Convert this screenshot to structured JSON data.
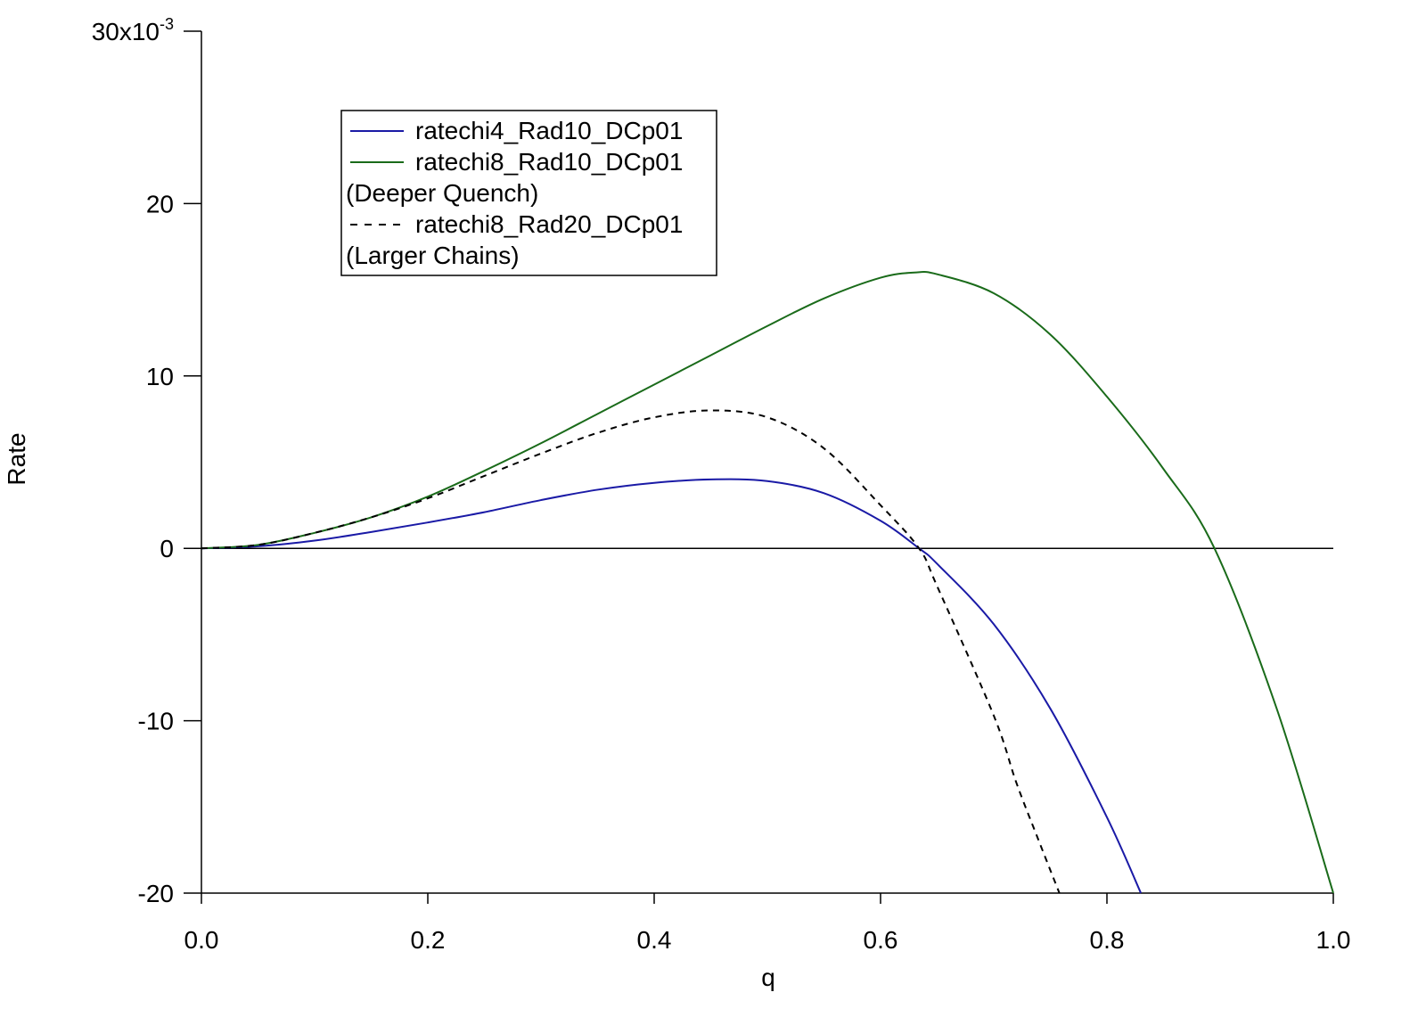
{
  "chart_data": {
    "type": "line",
    "title": "",
    "xlabel": "q",
    "ylabel": "Rate",
    "xlim": [
      0.0,
      1.0
    ],
    "ylim": [
      -0.02,
      0.03
    ],
    "x_ticks": [
      "0.0",
      "0.2",
      "0.4",
      "0.6",
      "0.8",
      "1.0"
    ],
    "x_tick_values": [
      0.0,
      0.2,
      0.4,
      0.6,
      0.8,
      1.0
    ],
    "y_ticks": [
      "-20",
      "-10",
      "0",
      "10",
      "20",
      "30x10"
    ],
    "y_tick_values": [
      -0.02,
      -0.01,
      0.0,
      0.01,
      0.02,
      0.03
    ],
    "y_exponent": "-3",
    "zero_line": true,
    "grid": false,
    "legend_position": "top-left",
    "series": [
      {
        "name": "ratechi4_Rad10_DCp01",
        "color": "#1a1aa6",
        "dash": "solid",
        "x": [
          0.0,
          0.05,
          0.1,
          0.15,
          0.2,
          0.25,
          0.3,
          0.35,
          0.4,
          0.45,
          0.5,
          0.55,
          0.6,
          0.634,
          0.65,
          0.7,
          0.75,
          0.8,
          0.83
        ],
        "y": [
          0.0,
          0.00012,
          0.00045,
          0.00095,
          0.0015,
          0.0021,
          0.0028,
          0.0034,
          0.0038,
          0.004,
          0.0039,
          0.0032,
          0.0016,
          0.0,
          -0.0009,
          -0.0044,
          -0.0093,
          -0.0156,
          -0.02
        ]
      },
      {
        "name": "ratechi8_Rad10_DCp01",
        "sublabel": "(Deeper Quench)",
        "color": "#1a6b1a",
        "dash": "solid",
        "x": [
          0.0,
          0.05,
          0.1,
          0.15,
          0.2,
          0.25,
          0.3,
          0.35,
          0.4,
          0.45,
          0.5,
          0.55,
          0.6,
          0.63,
          0.65,
          0.7,
          0.75,
          0.8,
          0.85,
          0.895,
          0.95,
          1.0
        ],
        "y": [
          0.0,
          0.0002,
          0.0009,
          0.0018,
          0.003,
          0.0045,
          0.0061,
          0.0078,
          0.0095,
          0.0112,
          0.0129,
          0.0145,
          0.0157,
          0.016,
          0.0159,
          0.0148,
          0.0124,
          0.0088,
          0.0046,
          0.0,
          -0.0093,
          -0.02
        ]
      },
      {
        "name": "ratechi8_Rad20_DCp01",
        "sublabel": "(Larger Chains)",
        "color": "#000000",
        "dash": "dashed",
        "x": [
          0.0,
          0.05,
          0.1,
          0.15,
          0.2,
          0.25,
          0.3,
          0.35,
          0.4,
          0.45,
          0.5,
          0.55,
          0.6,
          0.634,
          0.65,
          0.7,
          0.72,
          0.74,
          0.758
        ],
        "y": [
          0.0,
          0.0002,
          0.0009,
          0.0018,
          0.0029,
          0.0042,
          0.0055,
          0.0067,
          0.0076,
          0.008,
          0.0076,
          0.0058,
          0.0025,
          0.0,
          -0.0022,
          -0.0097,
          -0.0136,
          -0.017,
          -0.02
        ]
      }
    ]
  }
}
